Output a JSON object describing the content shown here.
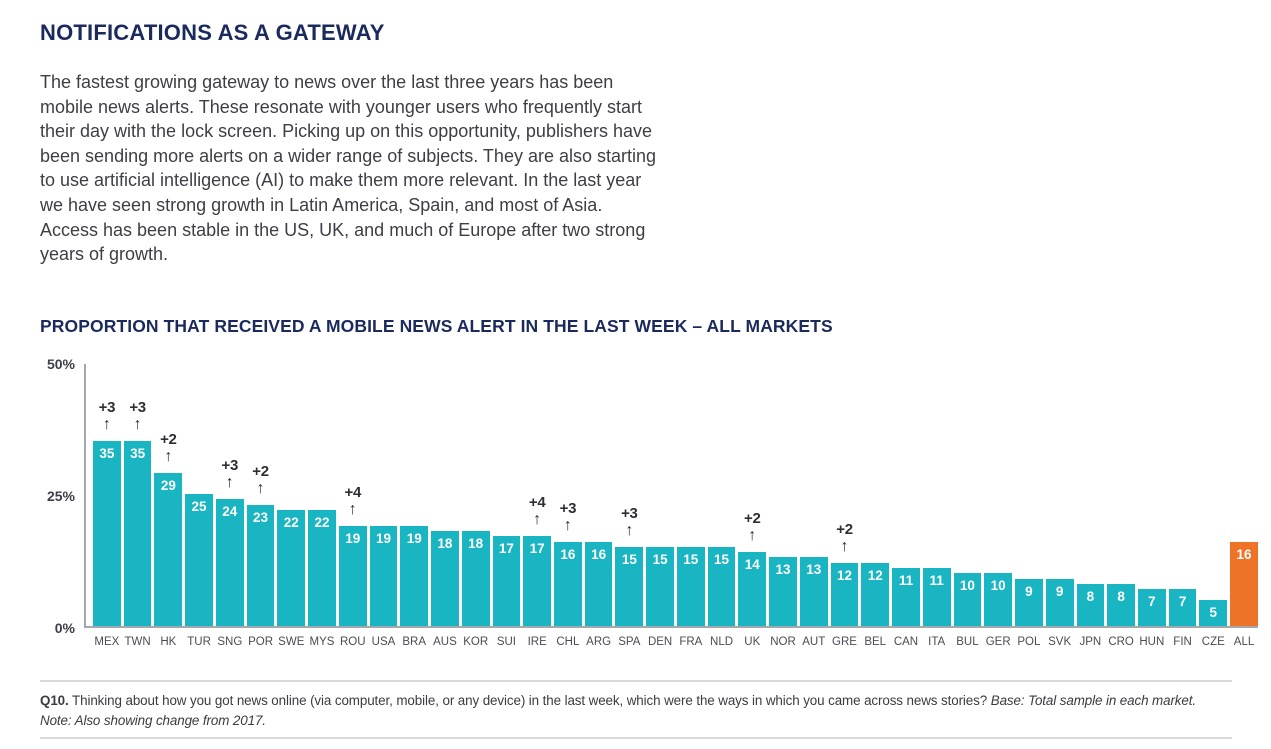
{
  "page": {
    "title": "NOTIFICATIONS AS A GATEWAY",
    "intro": "The fastest growing gateway to news over the last three years has been mobile news alerts. These resonate with younger users who frequently start their day with the lock screen. Picking up on this opportunity, publishers have been sending more alerts on a wider range of subjects. They are also starting to use artificial intelligence (AI) to make them more relevant. In the last year we have seen strong growth in Latin America, Spain, and most of Asia. Access has been stable in the US, UK, and much of Europe after two strong years of growth."
  },
  "chart_data": {
    "type": "bar",
    "title": "PROPORTION THAT RECEIVED A MOBILE NEWS ALERT IN THE LAST WEEK – ALL MARKETS",
    "xlabel": "",
    "ylabel": "",
    "unit": "%",
    "ylim": [
      0,
      50
    ],
    "yticks": [
      "50%",
      "25%",
      "0%"
    ],
    "grid": false,
    "legend": false,
    "categories": [
      "MEX",
      "TWN",
      "HK",
      "TUR",
      "SNG",
      "POR",
      "SWE",
      "MYS",
      "ROU",
      "USA",
      "BRA",
      "AUS",
      "KOR",
      "SUI",
      "IRE",
      "CHL",
      "ARG",
      "SPA",
      "DEN",
      "FRA",
      "NLD",
      "UK",
      "NOR",
      "AUT",
      "GRE",
      "BEL",
      "CAN",
      "ITA",
      "BUL",
      "GER",
      "POL",
      "SVK",
      "JPN",
      "CRO",
      "HUN",
      "FIN",
      "CZE",
      "ALL"
    ],
    "values": [
      35,
      35,
      29,
      25,
      24,
      23,
      22,
      22,
      19,
      19,
      19,
      18,
      18,
      17,
      17,
      16,
      16,
      15,
      15,
      15,
      15,
      14,
      13,
      13,
      12,
      12,
      11,
      11,
      10,
      10,
      9,
      9,
      8,
      8,
      7,
      7,
      5,
      16
    ],
    "changes_from_2017": {
      "MEX": "+3",
      "TWN": "+3",
      "HK": "+2",
      "SNG": "+3",
      "POR": "+2",
      "ROU": "+4",
      "IRE": "+4",
      "CHL": "+3",
      "SPA": "+3",
      "UK": "+2",
      "GRE": "+2"
    },
    "colors": {
      "bar": "#1ab5c3",
      "highlight": "#ef7229",
      "highlight_category": "ALL",
      "heading_navy": "#1a2a5c",
      "axis_gray": "#a6a6ad"
    }
  },
  "footer": {
    "q_label": "Q10.",
    "q_text": "Thinking about how you got news online (via computer, mobile, or any device) in the last week, which were the ways in which you came across news stories?",
    "base_text": "Base: Total sample in each market.",
    "note_text": "Note: Also showing change from 2017."
  }
}
